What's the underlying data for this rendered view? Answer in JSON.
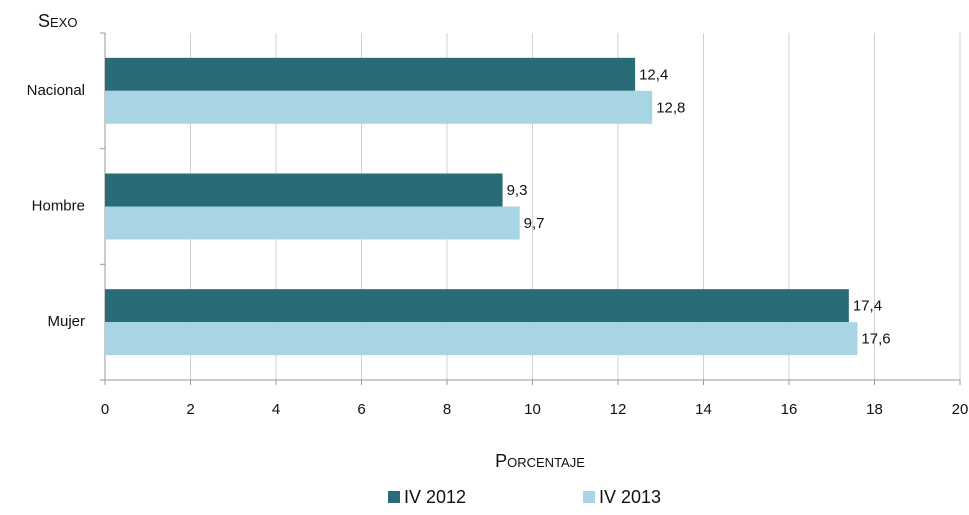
{
  "chart_data": {
    "type": "hbar",
    "y_axis_title": "Sexo",
    "x_axis_title": "Porcentaje",
    "categories": [
      "Nacional",
      "Hombre",
      "Mujer"
    ],
    "series": [
      {
        "name": "IV 2012",
        "color": "#2a6b78",
        "values": [
          12.4,
          9.3,
          17.4
        ],
        "value_labels": [
          "12,4",
          "9,3",
          "17,4"
        ]
      },
      {
        "name": "IV 2013",
        "color": "#a7d5e3",
        "values": [
          12.8,
          9.7,
          17.6
        ],
        "value_labels": [
          "12,8",
          "9,7",
          "17,6"
        ]
      }
    ],
    "xlim": [
      0,
      20
    ],
    "xticks": [
      0,
      2,
      4,
      6,
      8,
      10,
      12,
      14,
      16,
      18,
      20
    ],
    "grid": true,
    "legend": "bottom"
  }
}
